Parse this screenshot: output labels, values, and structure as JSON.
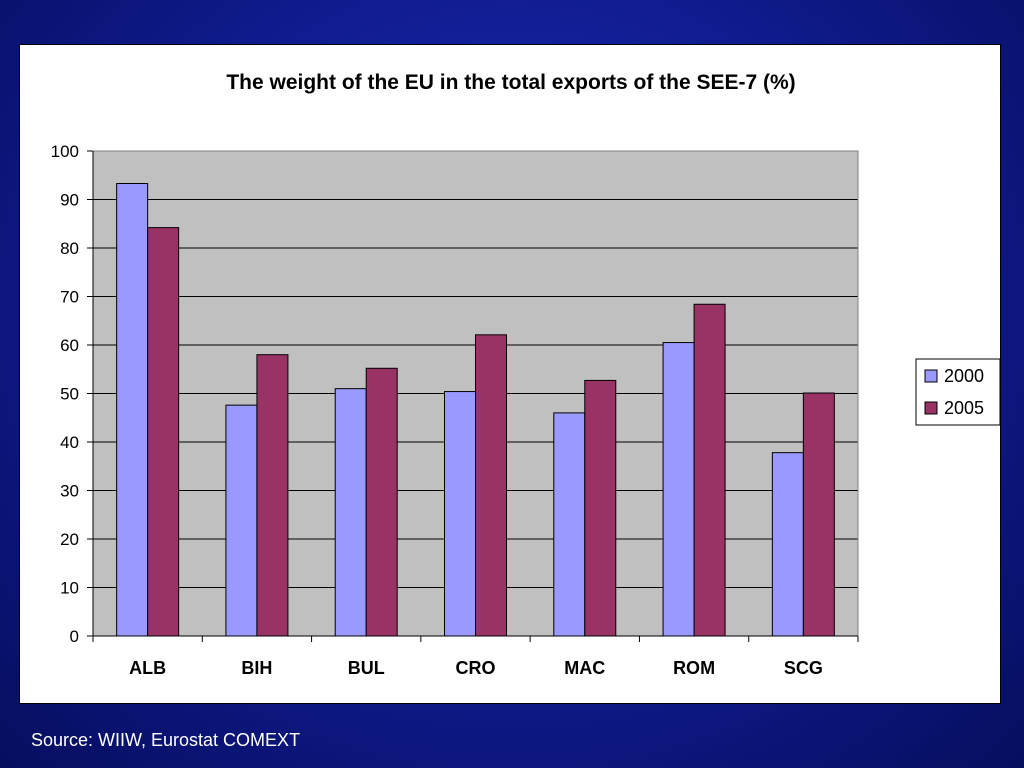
{
  "chart_data": {
    "type": "bar",
    "title": "The weight of the EU in the total exports of the SEE-7 (%)",
    "xlabel": "",
    "ylabel": "",
    "categories": [
      "ALB",
      "BIH",
      "BUL",
      "CRO",
      "MAC",
      "ROM",
      "SCG"
    ],
    "series": [
      {
        "name": "2000",
        "color": "#9999ff",
        "values": [
          93.3,
          47.6,
          51.0,
          50.4,
          46.0,
          60.5,
          37.8
        ]
      },
      {
        "name": "2005",
        "color": "#993366",
        "values": [
          84.2,
          58.0,
          55.2,
          62.1,
          52.7,
          68.4,
          50.1
        ]
      }
    ],
    "ylim": [
      0,
      100
    ],
    "yticks": [
      0,
      10,
      20,
      30,
      40,
      50,
      60,
      70,
      80,
      90,
      100
    ],
    "grid": true,
    "plot_background": "#c0c0c0",
    "legend_position": "right"
  },
  "source_note": "Source: WIIW, Eurostat COMEXT"
}
